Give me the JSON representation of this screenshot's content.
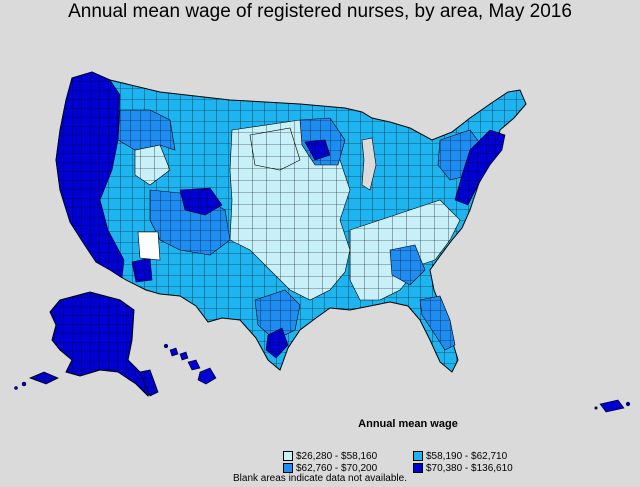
{
  "title": "Annual mean wage of registered nurses, by area, May 2016",
  "legend": {
    "title": "Annual mean wage",
    "items": [
      {
        "label": "$26,280 - $58,160",
        "color": "#c8f0f8"
      },
      {
        "label": "$58,190 - $62,710",
        "color": "#1eb4f0"
      },
      {
        "label": "$62,760 - $70,200",
        "color": "#1e8cf0"
      },
      {
        "label": "$70,380 - $136,610",
        "color": "#0000d2"
      }
    ]
  },
  "note": "Blank areas indicate data not available."
}
